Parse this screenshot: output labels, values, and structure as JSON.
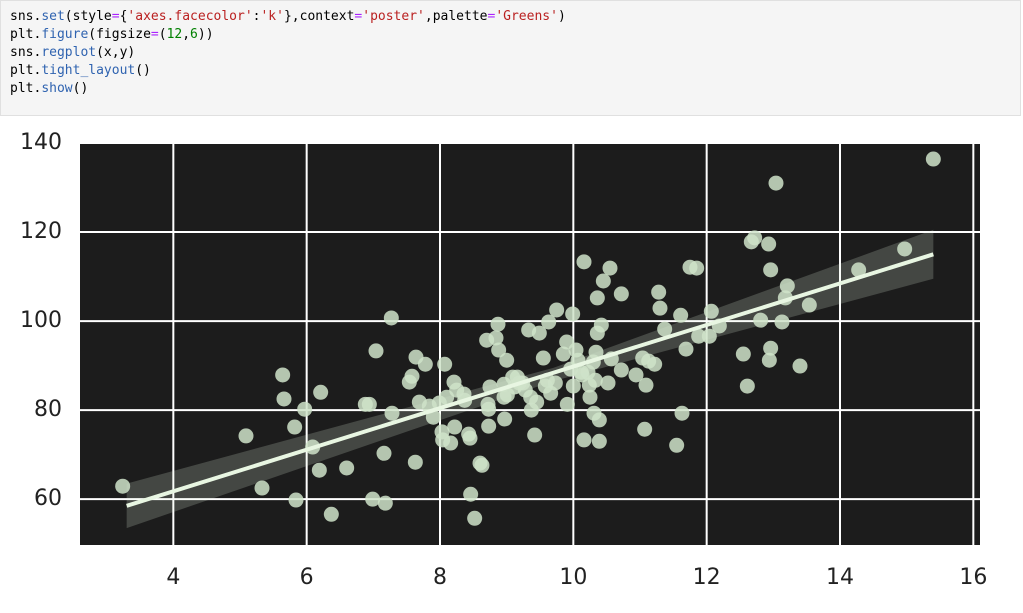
{
  "code": {
    "lines": [
      [
        {
          "text": "sns.",
          "color": "#000000"
        },
        {
          "text": "set",
          "color": "#2f63b0"
        },
        {
          "text": "(style",
          "color": "#000000"
        },
        {
          "text": "=",
          "color": "#aa22ff"
        },
        {
          "text": "{",
          "color": "#000000"
        },
        {
          "text": "'axes.facecolor'",
          "color": "#ba2121"
        },
        {
          "text": ":",
          "color": "#000000"
        },
        {
          "text": "'k'",
          "color": "#ba2121"
        },
        {
          "text": "},context",
          "color": "#000000"
        },
        {
          "text": "=",
          "color": "#aa22ff"
        },
        {
          "text": "'poster'",
          "color": "#ba2121"
        },
        {
          "text": ",palette",
          "color": "#000000"
        },
        {
          "text": "=",
          "color": "#aa22ff"
        },
        {
          "text": "'Greens'",
          "color": "#ba2121"
        },
        {
          "text": ")",
          "color": "#000000"
        }
      ],
      [
        {
          "text": "plt.",
          "color": "#000000"
        },
        {
          "text": "figure",
          "color": "#2f63b0"
        },
        {
          "text": "(figsize",
          "color": "#000000"
        },
        {
          "text": "=",
          "color": "#aa22ff"
        },
        {
          "text": "(",
          "color": "#000000"
        },
        {
          "text": "12",
          "color": "#008000"
        },
        {
          "text": ",",
          "color": "#000000"
        },
        {
          "text": "6",
          "color": "#008000"
        },
        {
          "text": "))",
          "color": "#000000"
        }
      ],
      [
        {
          "text": "sns.",
          "color": "#000000"
        },
        {
          "text": "regplot",
          "color": "#2f63b0"
        },
        {
          "text": "(x,y)",
          "color": "#000000"
        }
      ],
      [
        {
          "text": "plt.",
          "color": "#000000"
        },
        {
          "text": "tight_layout",
          "color": "#2f63b0"
        },
        {
          "text": "()",
          "color": "#000000"
        }
      ],
      [
        {
          "text": "plt.",
          "color": "#000000"
        },
        {
          "text": "show",
          "color": "#2f63b0"
        },
        {
          "text": "()",
          "color": "#000000"
        }
      ]
    ]
  },
  "chart_data": {
    "type": "scatter",
    "x": [
      3.24,
      5.09,
      5.33,
      5.64,
      5.66,
      5.82,
      5.84,
      5.97,
      6.09,
      6.19,
      6.21,
      6.37,
      6.6,
      6.88,
      6.94,
      6.99,
      7.04,
      7.16,
      7.18,
      7.27,
      7.28,
      7.54,
      7.58,
      7.63,
      7.64,
      7.69,
      7.78,
      7.84,
      7.9,
      7.99,
      8.03,
      8.04,
      8.07,
      8.1,
      8.16,
      8.21,
      8.22,
      8.25,
      8.36,
      8.37,
      8.43,
      8.45,
      8.46,
      8.52,
      8.6,
      8.63,
      8.7,
      8.72,
      8.73,
      8.73,
      8.75,
      8.84,
      8.87,
      8.88,
      8.96,
      8.96,
      8.97,
      9.0,
      9.01,
      9.09,
      9.12,
      9.16,
      9.19,
      9.24,
      9.28,
      9.33,
      9.36,
      9.37,
      9.42,
      9.45,
      9.49,
      9.55,
      9.58,
      9.61,
      9.63,
      9.66,
      9.73,
      9.75,
      9.85,
      9.9,
      9.91,
      9.96,
      9.99,
      10.0,
      10.04,
      10.07,
      10.12,
      10.13,
      10.16,
      10.16,
      10.22,
      10.24,
      10.25,
      10.3,
      10.31,
      10.33,
      10.34,
      10.36,
      10.36,
      10.39,
      10.39,
      10.42,
      10.45,
      10.52,
      10.55,
      10.57,
      10.72,
      10.72,
      10.94,
      11.04,
      11.07,
      11.09,
      11.13,
      11.22,
      11.28,
      11.3,
      11.37,
      11.55,
      11.61,
      11.63,
      11.69,
      11.75,
      11.85,
      11.88,
      12.04,
      12.07,
      12.19,
      12.55,
      12.61,
      12.67,
      12.72,
      12.81,
      12.93,
      12.96,
      12.94,
      12.96,
      13.04,
      13.13,
      13.18,
      13.21,
      13.4,
      13.54,
      14.28,
      14.97,
      15.4
    ],
    "values": [
      62.9,
      74.2,
      62.5,
      87.9,
      82.5,
      76.2,
      59.8,
      80.2,
      71.7,
      66.5,
      84.0,
      56.6,
      67.0,
      81.3,
      81.3,
      60.0,
      93.3,
      70.3,
      59.1,
      100.7,
      79.3,
      86.3,
      87.6,
      68.3,
      91.9,
      81.8,
      90.3,
      80.9,
      78.4,
      81.6,
      75.1,
      73.3,
      90.3,
      82.9,
      72.6,
      86.3,
      76.2,
      84.5,
      83.6,
      82.2,
      74.6,
      73.7,
      61.1,
      55.7,
      68.1,
      67.6,
      95.7,
      81.3,
      76.4,
      80.2,
      85.2,
      96.2,
      99.3,
      93.5,
      85.8,
      82.9,
      78.0,
      91.2,
      83.4,
      87.4,
      85.2,
      87.4,
      86.1,
      86.1,
      84.5,
      98.0,
      82.9,
      80.0,
      74.4,
      81.8,
      97.3,
      91.7,
      85.4,
      86.7,
      99.8,
      83.8,
      86.1,
      102.5,
      92.6,
      95.3,
      81.3,
      89.2,
      101.6,
      85.4,
      93.5,
      91.2,
      88.5,
      87.9,
      113.3,
      73.3,
      88.5,
      85.6,
      82.9,
      90.8,
      79.3,
      86.7,
      93.0,
      105.2,
      97.3,
      73.0,
      77.8,
      99.1,
      109.0,
      86.1,
      111.9,
      91.5,
      106.1,
      89.0,
      87.9,
      91.7,
      75.7,
      85.6,
      91.0,
      90.3,
      106.5,
      102.9,
      98.2,
      72.1,
      101.3,
      79.3,
      93.7,
      112.1,
      111.9,
      96.6,
      96.6,
      102.2,
      98.9,
      92.6,
      85.4,
      117.8,
      118.7,
      100.2,
      117.3,
      111.5,
      91.2,
      93.9,
      131.0,
      99.8,
      105.2,
      107.9,
      89.9,
      103.6,
      111.5,
      116.2,
      136.4
    ],
    "color": "#cfe3c9",
    "regression": {
      "x": [
        3.3,
        15.4
      ],
      "values": [
        58.5,
        115
      ],
      "ci_x": [
        3.3,
        9.7,
        15.4
      ],
      "ci_lower": [
        53.5,
        86.5,
        109.5
      ],
      "ci_upper": [
        63.5,
        89.5,
        120.5
      ],
      "color": "#e8f6e2"
    },
    "xlim": [
      2.6,
      16.1
    ],
    "ylim": [
      49.7,
      140
    ],
    "xticks": [
      4,
      6,
      8,
      10,
      12,
      14,
      16
    ],
    "yticks": [
      60,
      80,
      100,
      120,
      140
    ],
    "grid": true,
    "facecolor": "#1c1c1c"
  }
}
